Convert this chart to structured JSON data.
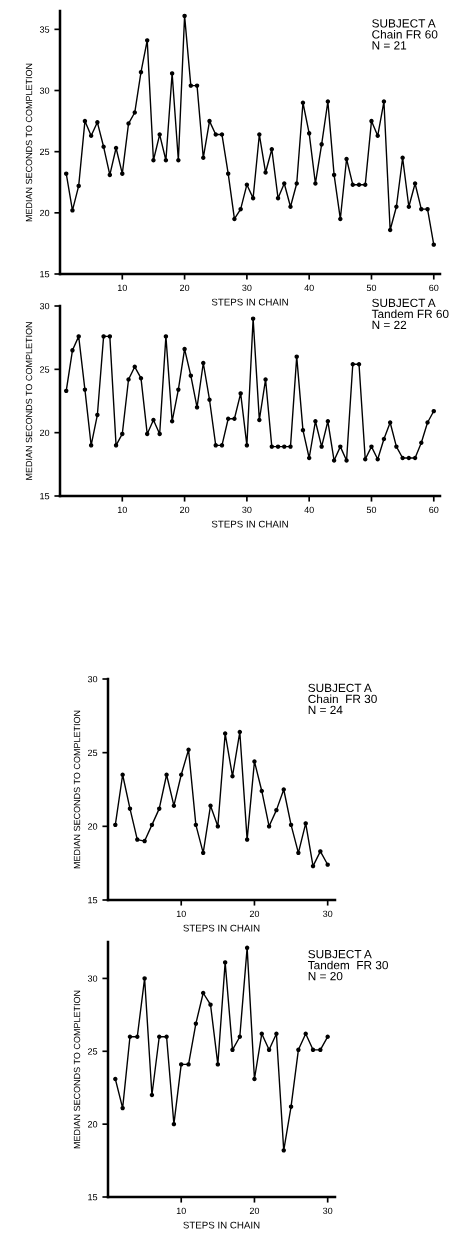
{
  "chart_data": [
    {
      "type": "line",
      "xlabel": "STEPS IN CHAIN",
      "ylabel": "MEDIAN SECONDS TO COMPLETION",
      "annotations": [
        "SUBJECT A\nChain FR 60\nN = 21"
      ],
      "x": [
        1,
        2,
        3,
        4,
        5,
        6,
        7,
        8,
        9,
        10,
        11,
        12,
        13,
        14,
        15,
        16,
        17,
        18,
        19,
        20,
        21,
        22,
        23,
        24,
        25,
        26,
        27,
        28,
        29,
        30,
        31,
        32,
        33,
        34,
        35,
        36,
        37,
        38,
        39,
        40,
        41,
        42,
        43,
        44,
        45,
        46,
        47,
        48,
        49,
        50,
        51,
        52,
        53,
        54,
        55,
        56,
        57,
        58,
        59,
        60
      ],
      "series": [
        {
          "color": "#000000",
          "values": [
            23.2,
            20.2,
            22.2,
            27.5,
            26.3,
            27.4,
            25.4,
            23.1,
            25.3,
            23.2,
            27.3,
            28.2,
            31.5,
            34.1,
            24.3,
            26.4,
            24.3,
            31.4,
            24.3,
            36.1,
            30.4,
            30.4,
            24.5,
            27.5,
            26.4,
            26.4,
            23.2,
            19.5,
            20.3,
            22.3,
            21.2,
            26.4,
            23.3,
            25.2,
            21.2,
            22.4,
            20.5,
            22.4,
            29.0,
            26.5,
            22.4,
            25.6,
            29.1,
            23.1,
            19.5,
            24.4,
            22.3,
            22.3,
            22.3,
            27.5,
            26.3,
            29.1,
            18.6,
            20.5,
            24.5,
            20.5,
            22.4,
            20.3,
            20.3,
            17.4
          ]
        }
      ],
      "xlim": [
        0,
        61
      ],
      "xticks": [
        10,
        20,
        30,
        40,
        50,
        60
      ],
      "ylim": [
        15,
        36.5
      ],
      "yticks": [
        15,
        20,
        25,
        30,
        35
      ],
      "grid": false,
      "legend": false,
      "marker": "circle",
      "line_style": "solid"
    },
    {
      "type": "line",
      "xlabel": "STEPS IN CHAIN",
      "ylabel": "MEDIAN SECONDS TO COMPLETION",
      "annotations": [
        "SUBJECT A\nTandem FR 60\nN = 22"
      ],
      "x": [
        1,
        2,
        3,
        4,
        5,
        6,
        7,
        8,
        9,
        10,
        11,
        12,
        13,
        14,
        15,
        16,
        17,
        18,
        19,
        20,
        21,
        22,
        23,
        24,
        25,
        26,
        27,
        28,
        29,
        30,
        31,
        32,
        33,
        34,
        35,
        36,
        37,
        38,
        39,
        40,
        41,
        42,
        43,
        44,
        45,
        46,
        47,
        48,
        49,
        50,
        51,
        52,
        53,
        54,
        55,
        56,
        57,
        58,
        59,
        60
      ],
      "series": [
        {
          "color": "#000000",
          "values": [
            23.3,
            26.5,
            27.6,
            23.4,
            19.0,
            21.4,
            27.6,
            27.6,
            19.0,
            19.9,
            24.2,
            25.2,
            24.3,
            19.9,
            21.0,
            19.9,
            27.6,
            20.9,
            23.4,
            26.6,
            24.5,
            22.0,
            25.5,
            22.6,
            19.0,
            19.0,
            21.1,
            21.1,
            23.1,
            19.0,
            29.0,
            21.0,
            24.2,
            18.9,
            18.9,
            18.9,
            18.9,
            26.0,
            20.2,
            18.0,
            20.9,
            18.9,
            20.9,
            17.8,
            18.9,
            17.8,
            25.4,
            25.4,
            17.9,
            18.9,
            17.9,
            19.5,
            20.8,
            18.9,
            18.0,
            18.0,
            18.0,
            19.2,
            20.8,
            21.7
          ]
        }
      ],
      "xlim": [
        0,
        61
      ],
      "xticks": [
        10,
        20,
        30,
        40,
        50,
        60
      ],
      "ylim": [
        15,
        30
      ],
      "yticks": [
        15,
        20,
        25,
        30
      ],
      "grid": false,
      "legend": false,
      "marker": "circle",
      "line_style": "solid"
    },
    {
      "type": "line",
      "xlabel": "STEPS IN CHAIN",
      "ylabel": "MEDIAN SECONDS TO COMPLETION",
      "annotations": [
        "SUBJECT A\nChain  FR 30\nN = 24"
      ],
      "x": [
        1,
        2,
        3,
        4,
        5,
        6,
        7,
        8,
        9,
        10,
        11,
        12,
        13,
        14,
        15,
        16,
        17,
        18,
        19,
        20,
        21,
        22,
        23,
        24,
        25,
        26,
        27,
        28,
        29,
        30
      ],
      "series": [
        {
          "color": "#000000",
          "values": [
            20.1,
            23.5,
            21.2,
            19.1,
            19.0,
            20.1,
            21.2,
            23.5,
            21.4,
            23.5,
            25.2,
            20.1,
            18.2,
            21.4,
            20.0,
            26.3,
            23.4,
            26.4,
            19.1,
            24.4,
            22.4,
            20.0,
            21.1,
            22.5,
            20.1,
            18.2,
            20.2,
            17.3,
            18.3,
            17.4
          ]
        }
      ],
      "xlim": [
        0,
        31
      ],
      "xticks": [
        10,
        20,
        30
      ],
      "ylim": [
        15,
        30
      ],
      "yticks": [
        15,
        20,
        25,
        30
      ],
      "grid": false,
      "legend": false,
      "marker": "circle",
      "line_style": "solid"
    },
    {
      "type": "line",
      "xlabel": "STEPS IN CHAIN",
      "ylabel": "MEDIAN SECONDS TO COMPLETION",
      "annotations": [
        "SUBJECT A\nTandem  FR 30\nN = 20"
      ],
      "x": [
        1,
        2,
        3,
        4,
        5,
        6,
        7,
        8,
        9,
        10,
        11,
        12,
        13,
        14,
        15,
        16,
        17,
        18,
        19,
        20,
        21,
        22,
        23,
        24,
        25,
        26,
        27,
        28,
        29,
        30
      ],
      "series": [
        {
          "color": "#000000",
          "values": [
            23.1,
            21.1,
            26.0,
            26.0,
            30.0,
            22.0,
            26.0,
            26.0,
            20.0,
            24.1,
            24.1,
            26.9,
            29.0,
            28.2,
            24.1,
            31.1,
            25.1,
            26.0,
            32.1,
            23.1,
            26.2,
            25.1,
            26.2,
            18.2,
            21.2,
            25.1,
            26.2,
            25.1,
            25.1,
            26.0
          ]
        }
      ],
      "xlim": [
        0,
        31
      ],
      "xticks": [
        10,
        20,
        30
      ],
      "ylim": [
        15,
        32.5
      ],
      "yticks": [
        15,
        20,
        25,
        30
      ],
      "grid": false,
      "legend": false,
      "marker": "circle",
      "line_style": "solid"
    }
  ]
}
